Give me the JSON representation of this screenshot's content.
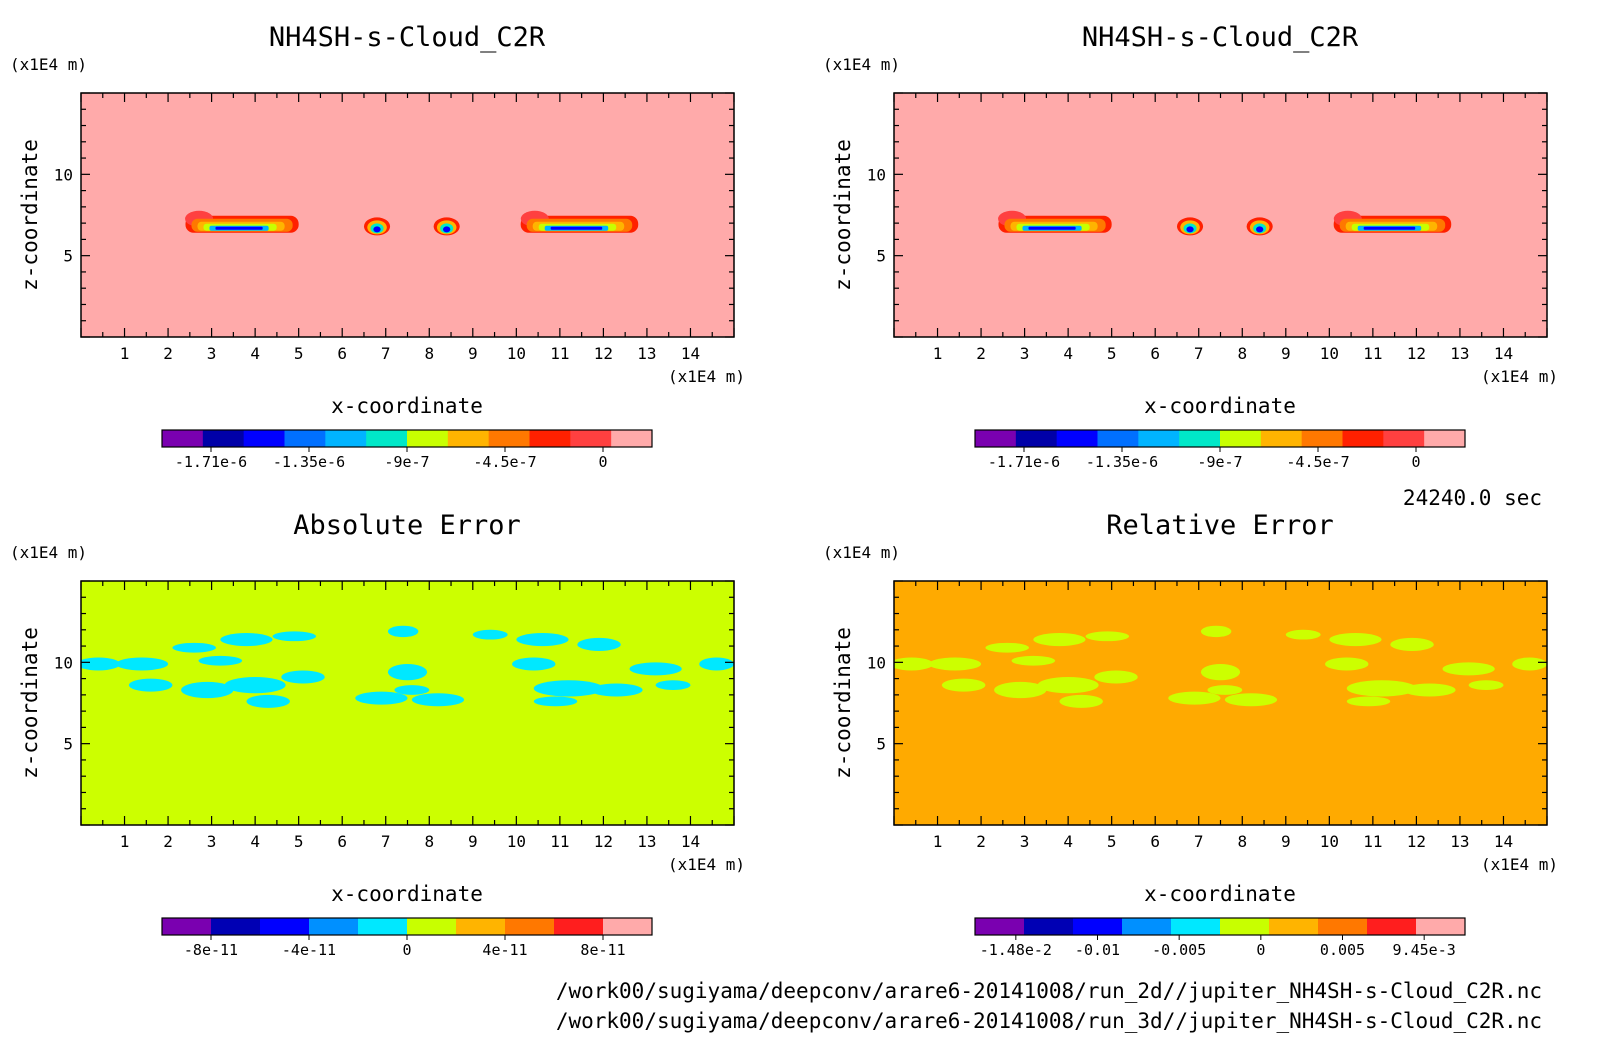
{
  "time_label": "24240.0 sec",
  "file_paths": [
    "/work00/sugiyama/deepconv/arare6-20141008/run_2d//jupiter_NH4SH-s-Cloud_C2R.nc",
    "/work00/sugiyama/deepconv/arare6-20141008/run_3d//jupiter_NH4SH-s-Cloud_C2R.nc"
  ],
  "chart_data": [
    {
      "type": "heatmap",
      "title": "NH4SH-s-Cloud_C2R",
      "xlabel": "x-coordinate",
      "ylabel": "z-coordinate",
      "x_unit": "(x1E4 m)",
      "z_unit": "(x1E4 m)",
      "x_ticks": [
        "1",
        "2",
        "3",
        "4",
        "5",
        "6",
        "7",
        "8",
        "9",
        "10",
        "11",
        "12",
        "13",
        "14"
      ],
      "z_ticks": [
        "5",
        "10"
      ],
      "xlim": [
        0,
        15
      ],
      "zlim": [
        0,
        15
      ],
      "background_color": "#ffaaaa",
      "colorbar": {
        "colors": [
          "#7a00b0",
          "#0000a8",
          "#0000ff",
          "#0070ff",
          "#00b4ff",
          "#00e8c8",
          "#c8ff00",
          "#ffb400",
          "#ff7800",
          "#ff2000",
          "#ff4040",
          "#ffaaaa"
        ],
        "labels": [
          "-1.71e-6",
          "-1.35e-6",
          "-9e-7",
          "-4.5e-7",
          "0"
        ]
      },
      "features": [
        {
          "shape": "cloud",
          "x_min": 2.4,
          "x_max": 5.0,
          "z": 6.9
        },
        {
          "shape": "blob",
          "x_min": 6.5,
          "x_max": 7.1,
          "z": 6.8
        },
        {
          "shape": "blob",
          "x_min": 8.1,
          "x_max": 8.7,
          "z": 6.8
        },
        {
          "shape": "cloud",
          "x_min": 10.1,
          "x_max": 12.8,
          "z": 6.9
        }
      ]
    },
    {
      "type": "heatmap",
      "title": "NH4SH-s-Cloud_C2R",
      "xlabel": "x-coordinate",
      "ylabel": "z-coordinate",
      "x_unit": "(x1E4 m)",
      "z_unit": "(x1E4 m)",
      "x_ticks": [
        "1",
        "2",
        "3",
        "4",
        "5",
        "6",
        "7",
        "8",
        "9",
        "10",
        "11",
        "12",
        "13",
        "14"
      ],
      "z_ticks": [
        "5",
        "10"
      ],
      "xlim": [
        0,
        15
      ],
      "zlim": [
        0,
        15
      ],
      "background_color": "#ffaaaa",
      "colorbar": {
        "colors": [
          "#7a00b0",
          "#0000a8",
          "#0000ff",
          "#0070ff",
          "#00b4ff",
          "#00e8c8",
          "#c8ff00",
          "#ffb400",
          "#ff7800",
          "#ff2000",
          "#ff4040",
          "#ffaaaa"
        ],
        "labels": [
          "-1.71e-6",
          "-1.35e-6",
          "-9e-7",
          "-4.5e-7",
          "0"
        ]
      },
      "features": [
        {
          "shape": "cloud",
          "x_min": 2.4,
          "x_max": 5.0,
          "z": 6.9
        },
        {
          "shape": "blob",
          "x_min": 6.5,
          "x_max": 7.1,
          "z": 6.8
        },
        {
          "shape": "blob",
          "x_min": 8.1,
          "x_max": 8.7,
          "z": 6.8
        },
        {
          "shape": "cloud",
          "x_min": 10.1,
          "x_max": 12.8,
          "z": 6.9
        }
      ]
    },
    {
      "type": "heatmap",
      "title": "Absolute Error",
      "xlabel": "x-coordinate",
      "ylabel": "z-coordinate",
      "x_unit": "(x1E4 m)",
      "z_unit": "(x1E4 m)",
      "x_ticks": [
        "1",
        "2",
        "3",
        "4",
        "5",
        "6",
        "7",
        "8",
        "9",
        "10",
        "11",
        "12",
        "13",
        "14"
      ],
      "z_ticks": [
        "5",
        "10"
      ],
      "xlim": [
        0,
        15
      ],
      "zlim": [
        0,
        15
      ],
      "background_color": "#ccff00",
      "pattern_color": "#00e8ff",
      "colorbar": {
        "colors": [
          "#7a00b0",
          "#0000b4",
          "#0000ff",
          "#0090ff",
          "#00e8ff",
          "#c8ff00",
          "#ffb400",
          "#ff7800",
          "#ff1e1e",
          "#ffaaaa"
        ],
        "labels": [
          "-8e-11",
          "-4e-11",
          "0",
          "4e-11",
          "8e-11"
        ]
      },
      "pattern_regions": [
        {
          "x": 0.4,
          "z": 9.9,
          "rx": 0.5,
          "rz": 0.4
        },
        {
          "x": 1.4,
          "z": 9.9,
          "rx": 0.6,
          "rz": 0.4
        },
        {
          "x": 2.6,
          "z": 10.9,
          "rx": 0.5,
          "rz": 0.3
        },
        {
          "x": 3.8,
          "z": 11.4,
          "rx": 0.6,
          "rz": 0.4
        },
        {
          "x": 4.9,
          "z": 11.6,
          "rx": 0.5,
          "rz": 0.3
        },
        {
          "x": 3.2,
          "z": 10.1,
          "rx": 0.5,
          "rz": 0.3
        },
        {
          "x": 1.6,
          "z": 8.6,
          "rx": 0.5,
          "rz": 0.4
        },
        {
          "x": 2.9,
          "z": 8.3,
          "rx": 0.6,
          "rz": 0.5
        },
        {
          "x": 4.0,
          "z": 8.6,
          "rx": 0.7,
          "rz": 0.5
        },
        {
          "x": 5.1,
          "z": 9.1,
          "rx": 0.5,
          "rz": 0.4
        },
        {
          "x": 4.3,
          "z": 7.6,
          "rx": 0.5,
          "rz": 0.4
        },
        {
          "x": 7.4,
          "z": 11.9,
          "rx": 0.35,
          "rz": 0.35
        },
        {
          "x": 7.5,
          "z": 9.4,
          "rx": 0.45,
          "rz": 0.5
        },
        {
          "x": 6.9,
          "z": 7.8,
          "rx": 0.6,
          "rz": 0.4
        },
        {
          "x": 8.2,
          "z": 7.7,
          "rx": 0.6,
          "rz": 0.4
        },
        {
          "x": 7.6,
          "z": 8.3,
          "rx": 0.4,
          "rz": 0.3
        },
        {
          "x": 9.4,
          "z": 11.7,
          "rx": 0.4,
          "rz": 0.3
        },
        {
          "x": 10.6,
          "z": 11.4,
          "rx": 0.6,
          "rz": 0.4
        },
        {
          "x": 11.9,
          "z": 11.1,
          "rx": 0.5,
          "rz": 0.4
        },
        {
          "x": 10.4,
          "z": 9.9,
          "rx": 0.5,
          "rz": 0.4
        },
        {
          "x": 11.2,
          "z": 8.4,
          "rx": 0.8,
          "rz": 0.5
        },
        {
          "x": 12.3,
          "z": 8.3,
          "rx": 0.6,
          "rz": 0.4
        },
        {
          "x": 13.2,
          "z": 9.6,
          "rx": 0.6,
          "rz": 0.4
        },
        {
          "x": 14.6,
          "z": 9.9,
          "rx": 0.4,
          "rz": 0.4
        },
        {
          "x": 13.6,
          "z": 8.6,
          "rx": 0.4,
          "rz": 0.3
        },
        {
          "x": 10.9,
          "z": 7.6,
          "rx": 0.5,
          "rz": 0.3
        }
      ]
    },
    {
      "type": "heatmap",
      "title": "Relative Error",
      "xlabel": "x-coordinate",
      "ylabel": "z-coordinate",
      "x_unit": "(x1E4 m)",
      "z_unit": "(x1E4 m)",
      "x_ticks": [
        "1",
        "2",
        "3",
        "4",
        "5",
        "6",
        "7",
        "8",
        "9",
        "10",
        "11",
        "12",
        "13",
        "14"
      ],
      "z_ticks": [
        "5",
        "10"
      ],
      "xlim": [
        0,
        15
      ],
      "zlim": [
        0,
        15
      ],
      "background_color": "#ffaa00",
      "pattern_color": "#ccff00",
      "colorbar": {
        "colors": [
          "#7a00b0",
          "#0000b4",
          "#0000ff",
          "#0090ff",
          "#00e8ff",
          "#c8ff00",
          "#ffb400",
          "#ff7800",
          "#ff1e1e",
          "#ffaaaa"
        ],
        "labels": [
          "-1.48e-2",
          "-0.01",
          "-0.005",
          "0",
          "0.005",
          "9.45e-3"
        ]
      },
      "pattern_regions": [
        {
          "x": 0.4,
          "z": 9.9,
          "rx": 0.5,
          "rz": 0.4
        },
        {
          "x": 1.4,
          "z": 9.9,
          "rx": 0.6,
          "rz": 0.4
        },
        {
          "x": 2.6,
          "z": 10.9,
          "rx": 0.5,
          "rz": 0.3
        },
        {
          "x": 3.8,
          "z": 11.4,
          "rx": 0.6,
          "rz": 0.4
        },
        {
          "x": 4.9,
          "z": 11.6,
          "rx": 0.5,
          "rz": 0.3
        },
        {
          "x": 3.2,
          "z": 10.1,
          "rx": 0.5,
          "rz": 0.3
        },
        {
          "x": 1.6,
          "z": 8.6,
          "rx": 0.5,
          "rz": 0.4
        },
        {
          "x": 2.9,
          "z": 8.3,
          "rx": 0.6,
          "rz": 0.5
        },
        {
          "x": 4.0,
          "z": 8.6,
          "rx": 0.7,
          "rz": 0.5
        },
        {
          "x": 5.1,
          "z": 9.1,
          "rx": 0.5,
          "rz": 0.4
        },
        {
          "x": 4.3,
          "z": 7.6,
          "rx": 0.5,
          "rz": 0.4
        },
        {
          "x": 7.4,
          "z": 11.9,
          "rx": 0.35,
          "rz": 0.35
        },
        {
          "x": 7.5,
          "z": 9.4,
          "rx": 0.45,
          "rz": 0.5
        },
        {
          "x": 6.9,
          "z": 7.8,
          "rx": 0.6,
          "rz": 0.4
        },
        {
          "x": 8.2,
          "z": 7.7,
          "rx": 0.6,
          "rz": 0.4
        },
        {
          "x": 7.6,
          "z": 8.3,
          "rx": 0.4,
          "rz": 0.3
        },
        {
          "x": 9.4,
          "z": 11.7,
          "rx": 0.4,
          "rz": 0.3
        },
        {
          "x": 10.6,
          "z": 11.4,
          "rx": 0.6,
          "rz": 0.4
        },
        {
          "x": 11.9,
          "z": 11.1,
          "rx": 0.5,
          "rz": 0.4
        },
        {
          "x": 10.4,
          "z": 9.9,
          "rx": 0.5,
          "rz": 0.4
        },
        {
          "x": 11.2,
          "z": 8.4,
          "rx": 0.8,
          "rz": 0.5
        },
        {
          "x": 12.3,
          "z": 8.3,
          "rx": 0.6,
          "rz": 0.4
        },
        {
          "x": 13.2,
          "z": 9.6,
          "rx": 0.6,
          "rz": 0.4
        },
        {
          "x": 14.6,
          "z": 9.9,
          "rx": 0.4,
          "rz": 0.4
        },
        {
          "x": 13.6,
          "z": 8.6,
          "rx": 0.4,
          "rz": 0.3
        },
        {
          "x": 10.9,
          "z": 7.6,
          "rx": 0.5,
          "rz": 0.3
        }
      ]
    }
  ]
}
